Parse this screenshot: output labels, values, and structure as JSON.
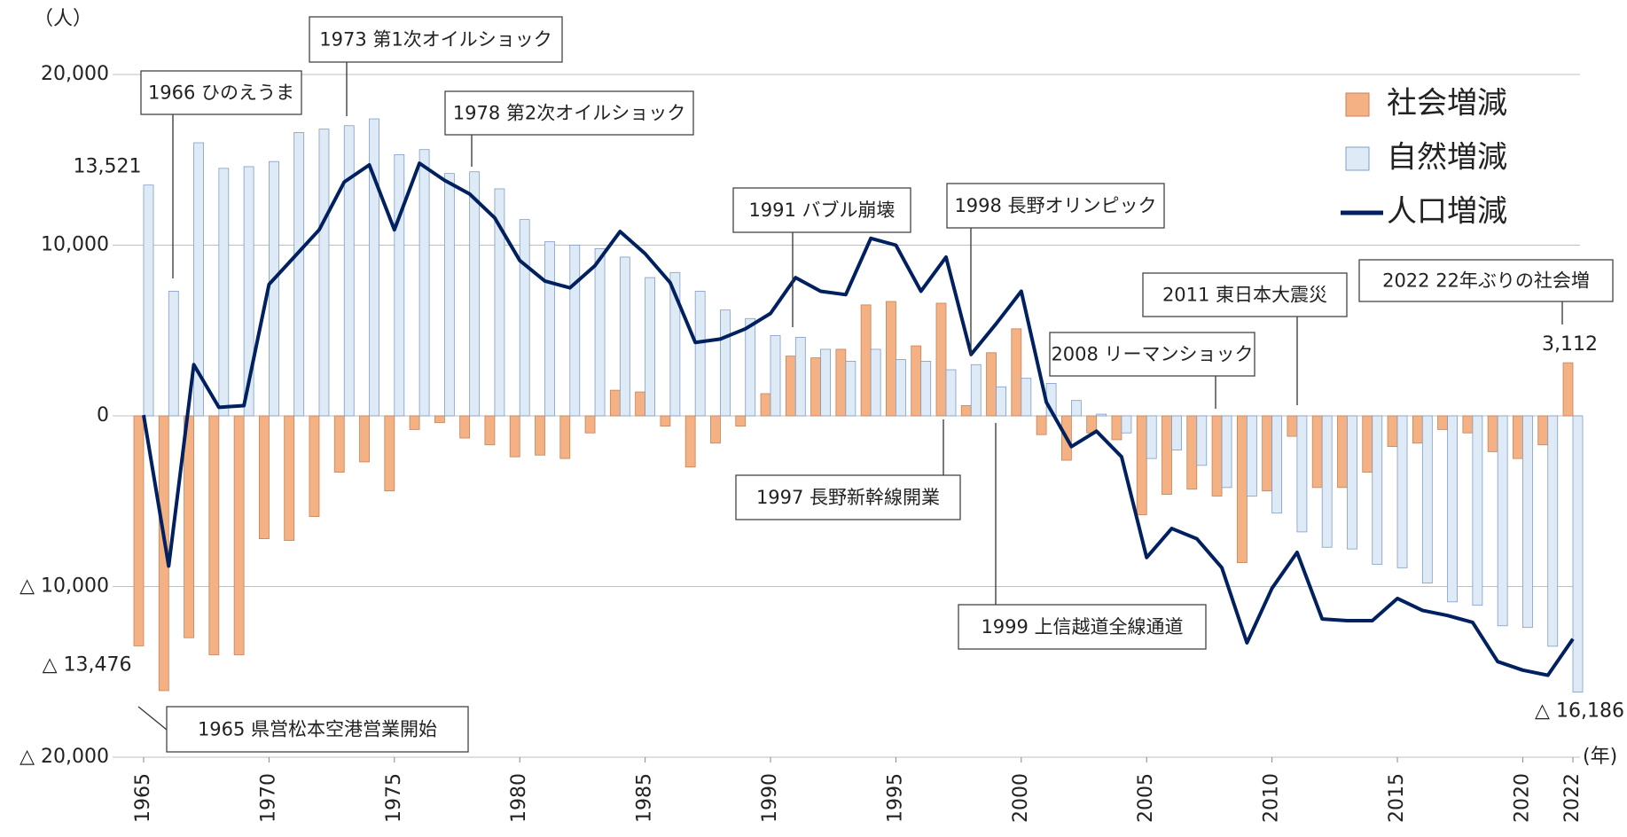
{
  "chart_data": {
    "type": "bar",
    "y_unit": "（人）",
    "x_unit": "(年)",
    "x": [
      1965,
      1966,
      1967,
      1968,
      1969,
      1970,
      1971,
      1972,
      1973,
      1974,
      1975,
      1976,
      1977,
      1978,
      1979,
      1980,
      1981,
      1982,
      1983,
      1984,
      1985,
      1986,
      1987,
      1988,
      1989,
      1990,
      1991,
      1992,
      1993,
      1994,
      1995,
      1996,
      1997,
      1998,
      1999,
      2000,
      2001,
      2002,
      2003,
      2004,
      2005,
      2006,
      2007,
      2008,
      2009,
      2010,
      2011,
      2012,
      2013,
      2014,
      2015,
      2016,
      2017,
      2018,
      2019,
      2020,
      2021,
      2022
    ],
    "xlim": [
      1964.5,
      2022.5
    ],
    "xticks": [
      1965,
      1970,
      1975,
      1980,
      1985,
      1990,
      1995,
      2000,
      2005,
      2010,
      2015,
      2020,
      2022
    ],
    "ylim": [
      -20000,
      20000
    ],
    "yticks": [
      {
        "value": 20000,
        "label": "20,000"
      },
      {
        "value": 10000,
        "label": "10,000"
      },
      0,
      {
        "value": -10000,
        "label": "△ 10,000"
      },
      {
        "value": -20000,
        "label": "△ 20,000"
      }
    ],
    "grid": true,
    "legend": "upper right",
    "series": [
      {
        "name": "社会増減",
        "type": "bar",
        "color": "#f4b183",
        "edge": "#c5825a",
        "values": [
          -13476,
          -16100,
          -13000,
          -14000,
          -14000,
          -7200,
          -7300,
          -5900,
          -3300,
          -2700,
          -4400,
          -800,
          -400,
          -1300,
          -1700,
          -2400,
          -2300,
          -2500,
          -1000,
          1500,
          1400,
          -600,
          -3000,
          -1600,
          -600,
          1300,
          3500,
          3400,
          3900,
          6500,
          6700,
          4100,
          6600,
          600,
          3700,
          5100,
          -1100,
          -2600,
          -1000,
          -1400,
          -5800,
          -4600,
          -4300,
          -4700,
          -8600,
          -4400,
          -1200,
          -4200,
          -4200,
          -3300,
          -1800,
          -1600,
          -800,
          -1000,
          -2100,
          -2500,
          -1700,
          3112
        ],
        "value_labels": [
          "△ 13,476",
          null,
          null,
          null,
          null,
          null,
          null,
          null,
          null,
          null,
          null,
          null,
          null,
          null,
          null,
          null,
          null,
          null,
          null,
          null,
          null,
          null,
          null,
          null,
          null,
          null,
          null,
          null,
          null,
          null,
          null,
          null,
          null,
          null,
          null,
          null,
          null,
          null,
          null,
          null,
          null,
          null,
          null,
          null,
          null,
          null,
          null,
          null,
          null,
          null,
          null,
          null,
          null,
          null,
          null,
          null,
          null,
          "3,112"
        ]
      },
      {
        "name": "自然増減",
        "type": "bar",
        "color": "#deebf7",
        "edge": "#7f9cc4",
        "values": [
          13521,
          7300,
          16000,
          14500,
          14600,
          14900,
          16600,
          16800,
          17000,
          17400,
          15300,
          15600,
          14200,
          14300,
          13300,
          11500,
          10200,
          10000,
          9800,
          9300,
          8100,
          8400,
          7300,
          6200,
          5700,
          4700,
          4600,
          3900,
          3200,
          3900,
          3300,
          3200,
          2700,
          3000,
          1700,
          2200,
          1900,
          900,
          100,
          -1000,
          -2500,
          -2000,
          -2900,
          -4200,
          -4700,
          -5700,
          -6800,
          -7700,
          -7800,
          -8700,
          -8900,
          -9800,
          -10900,
          -11100,
          -12300,
          -12400,
          -13500,
          -16186
        ],
        "value_labels": [
          "13,521",
          null,
          null,
          null,
          null,
          null,
          null,
          null,
          null,
          null,
          null,
          null,
          null,
          null,
          null,
          null,
          null,
          null,
          null,
          null,
          null,
          null,
          null,
          null,
          null,
          null,
          null,
          null,
          null,
          null,
          null,
          null,
          null,
          null,
          null,
          null,
          null,
          null,
          null,
          null,
          null,
          null,
          null,
          null,
          null,
          null,
          null,
          null,
          null,
          null,
          null,
          null,
          null,
          null,
          null,
          null,
          null,
          "△ 16,186"
        ]
      },
      {
        "name": "人口増減",
        "type": "line",
        "color": "#002060",
        "values": [
          45,
          -8800,
          3000,
          500,
          600,
          7700,
          9300,
          10900,
          13700,
          14700,
          10900,
          14800,
          13800,
          13000,
          11600,
          9100,
          7900,
          7500,
          8800,
          10800,
          9500,
          7800,
          4300,
          4500,
          5100,
          6000,
          8100,
          7300,
          7100,
          10400,
          10000,
          7300,
          9300,
          3600,
          5400,
          7300,
          800,
          -1800,
          -900,
          -2400,
          -8300,
          -6600,
          -7200,
          -8900,
          -13300,
          -10100,
          -8000,
          -11900,
          -12000,
          -12000,
          -10700,
          -11400,
          -11700,
          -12100,
          -14400,
          -14900,
          -15200,
          -13074
        ]
      }
    ],
    "annotations": [
      "1966  ひのえうま",
      "1973  第1次オイルショック",
      "1978  第2次オイルショック",
      "1991  バブル崩壊",
      "1998  長野オリンピック",
      "2011  東日本大震災",
      "2022  22年ぶりの社会増",
      "2008  リーマンショック",
      "1997  長野新幹線開業",
      "1999  上信越道全線通道",
      "1965  県営松本空港営業開始"
    ]
  }
}
